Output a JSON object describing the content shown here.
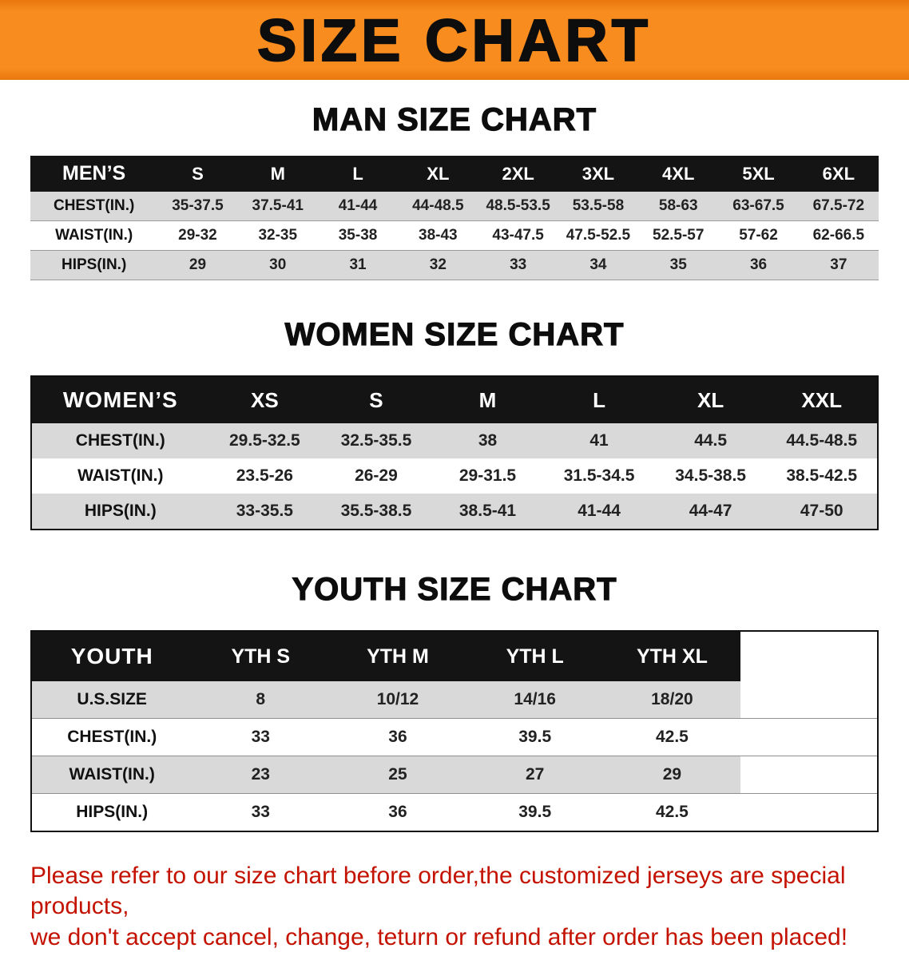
{
  "banner": {
    "title": "SIZE CHART",
    "bg_color": "#f88c1e",
    "text_color": "#0d0d0d"
  },
  "sections": [
    {
      "heading": "MAN SIZE CHART",
      "table": {
        "header": [
          "MEN’S",
          "S",
          "M",
          "L",
          "XL",
          "2XL",
          "3XL",
          "4XL",
          "5XL",
          "6XL"
        ],
        "rows": [
          [
            "CHEST(IN.)",
            "35-37.5",
            "37.5-41",
            "41-44",
            "44-48.5",
            "48.5-53.5",
            "53.5-58",
            "58-63",
            "63-67.5",
            "67.5-72"
          ],
          [
            "WAIST(IN.)",
            "29-32",
            "32-35",
            "35-38",
            "38-43",
            "43-47.5",
            "47.5-52.5",
            "52.5-57",
            "57-62",
            "62-66.5"
          ],
          [
            "HIPS(IN.)",
            "29",
            "30",
            "31",
            "32",
            "33",
            "34",
            "35",
            "36",
            "37"
          ]
        ]
      }
    },
    {
      "heading": "WOMEN SIZE CHART",
      "table": {
        "header": [
          "WOMEN’S",
          "XS",
          "S",
          "M",
          "L",
          "XL",
          "XXL"
        ],
        "rows": [
          [
            "CHEST(IN.)",
            "29.5-32.5",
            "32.5-35.5",
            "38",
            "41",
            "44.5",
            "44.5-48.5"
          ],
          [
            "WAIST(IN.)",
            "23.5-26",
            "26-29",
            "29-31.5",
            "31.5-34.5",
            "34.5-38.5",
            "38.5-42.5"
          ],
          [
            "HIPS(IN.)",
            "33-35.5",
            "35.5-38.5",
            "38.5-41",
            "41-44",
            "44-47",
            "47-50"
          ]
        ]
      }
    },
    {
      "heading": "YOUTH SIZE CHART",
      "table": {
        "header": [
          "YOUTH",
          "YTH S",
          "YTH M",
          "YTH L",
          "YTH XL"
        ],
        "rows": [
          [
            "U.S.SIZE",
            "8",
            "10/12",
            "14/16",
            "18/20"
          ],
          [
            "CHEST(IN.)",
            "33",
            "36",
            "39.5",
            "42.5"
          ],
          [
            "WAIST(IN.)",
            "23",
            "25",
            "27",
            "29"
          ],
          [
            "HIPS(IN.)",
            "33",
            "36",
            "39.5",
            "42.5"
          ]
        ]
      }
    }
  ],
  "disclaimer": {
    "line1": "Please refer to our size chart before order,the customized jerseys are special products,",
    "line2": "we don't accept cancel, change, teturn or refund after order has been placed!",
    "text_color": "#c41200"
  }
}
